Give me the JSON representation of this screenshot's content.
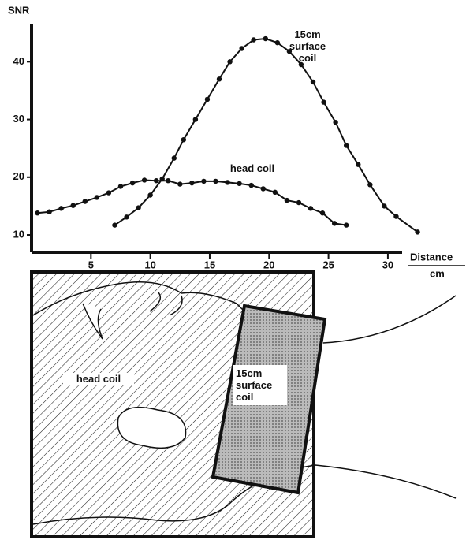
{
  "chart_data": {
    "type": "scatter",
    "ylabel": "SNR",
    "xlabel": "Distance",
    "xunit": "cm",
    "xlim": [
      0,
      31.2
    ],
    "ylim": [
      7,
      46.6
    ],
    "xticks": [
      5,
      10,
      15,
      20,
      25,
      30
    ],
    "yticks": [
      10,
      20,
      30,
      40
    ],
    "color": "#111111",
    "series": [
      {
        "name": "15cm surface coil",
        "color": "#111111",
        "x": [
          7,
          8,
          9,
          10,
          11,
          12,
          12.8,
          13.8,
          14.8,
          15.8,
          16.7,
          17.7,
          18.7,
          19.7,
          20.7,
          21.7,
          22.7,
          23.7,
          24.6,
          25.6,
          26.5,
          27.5,
          28.5,
          29.7,
          30.7,
          32.5
        ],
        "values": [
          11.7,
          13.1,
          14.7,
          16.9,
          19.7,
          23.3,
          26.5,
          30,
          33.5,
          37,
          40,
          42.3,
          43.8,
          44,
          43.3,
          41.8,
          39.5,
          36.5,
          33,
          29.5,
          25.5,
          22.2,
          18.7,
          15,
          13.2,
          10.5
        ]
      },
      {
        "name": "head coil",
        "color": "#111111",
        "x": [
          0.5,
          1.5,
          2.5,
          3.5,
          4.5,
          5.5,
          6.5,
          7.5,
          8.5,
          9.5,
          10.5,
          11.5,
          12.5,
          13.5,
          14.5,
          15.5,
          16.5,
          17.5,
          18.5,
          19.5,
          20.5,
          21.5,
          22.5,
          23.5,
          24.5,
          25.5,
          26.5
        ],
        "values": [
          13.8,
          14.0,
          14.6,
          15.1,
          15.8,
          16.5,
          17.3,
          18.4,
          19.0,
          19.5,
          19.4,
          19.4,
          18.8,
          19.0,
          19.3,
          19.3,
          19.1,
          18.9,
          18.6,
          18.0,
          17.4,
          16.0,
          15.6,
          14.6,
          13.8,
          12.0,
          11.7
        ]
      }
    ]
  },
  "diagram": {
    "labels": [
      "head coil",
      "15cm surface coil"
    ]
  }
}
